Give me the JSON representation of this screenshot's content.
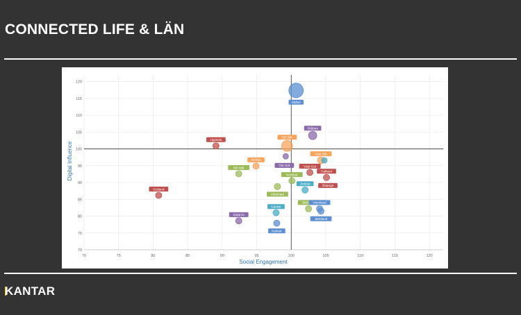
{
  "slide": {
    "title": "CONNECTED LIFE & LÄN",
    "brand": "KANTAR",
    "colors": {
      "background": "#333333",
      "rule": "#ffffff",
      "brand_accent": "#f5c400"
    }
  },
  "chart_data": {
    "type": "scatter",
    "subtype": "bubble",
    "xlabel": "Social Engagement",
    "ylabel": "Digital Influence",
    "xlim": [
      70,
      122
    ],
    "ylim": [
      70,
      122
    ],
    "xticks": [
      70,
      75,
      80,
      85,
      90,
      95,
      100,
      105,
      110,
      115,
      120
    ],
    "yticks": [
      70,
      75,
      80,
      85,
      90,
      95,
      100,
      105,
      110,
      115,
      120
    ],
    "reference_lines": {
      "x": 100,
      "y": 100
    },
    "grid": true,
    "legend": "none",
    "colors": {
      "blue": "#5b8fd1",
      "purple": "#8a6aaa",
      "red": "#c0504d",
      "orange": "#f7a35c",
      "green": "#9bbb59",
      "cyan": "#4bacc6"
    },
    "points": [
      {
        "label": "Skåne",
        "x": 100.7,
        "y": 117.4,
        "size": 10.5,
        "color": "blue",
        "label_pos": "below"
      },
      {
        "label": "Skånes",
        "x": 103.1,
        "y": 104.0,
        "size": 6,
        "color": "purple",
        "label_pos": "above"
      },
      {
        "label": "Sth Sth",
        "x": 99.4,
        "y": 100.9,
        "size": 8,
        "color": "orange",
        "label_pos": "above"
      },
      {
        "label": "Uppsala",
        "x": 89.1,
        "y": 100.9,
        "size": 4.5,
        "color": "red",
        "label_pos": "above"
      },
      {
        "label": "Väst Sth",
        "x": 104.3,
        "y": 96.6,
        "size": 5,
        "color": "orange",
        "label_pos": "above"
      },
      {
        "label": "",
        "x": 104.8,
        "y": 96.6,
        "size": 4,
        "color": "cyan",
        "label_pos": "none"
      },
      {
        "label": "",
        "x": 99.2,
        "y": 97.8,
        "size": 4,
        "color": "purple",
        "label_pos": "none"
      },
      {
        "label": "Örebro",
        "x": 94.9,
        "y": 94.9,
        "size": 4.5,
        "color": "orange",
        "label_pos": "above"
      },
      {
        "label": "Öst Göt",
        "x": 99.0,
        "y": 95.0,
        "size": 4,
        "color": "purple",
        "label_pos": "label-only"
      },
      {
        "label": "Väst Got",
        "x": 102.7,
        "y": 93.0,
        "size": 4.5,
        "color": "red",
        "label_pos": "above"
      },
      {
        "label": "Sth Mitt",
        "x": 92.4,
        "y": 92.6,
        "size": 4.5,
        "color": "green",
        "label_pos": "above"
      },
      {
        "label": "Halland",
        "x": 105.1,
        "y": 91.5,
        "size": 4.5,
        "color": "red",
        "label_pos": "above"
      },
      {
        "label": "Norrbott",
        "x": 100.1,
        "y": 90.5,
        "size": 4.5,
        "color": "green",
        "label_pos": "above"
      },
      {
        "label": "Gotland",
        "x": 80.8,
        "y": 86.2,
        "size": 4.5,
        "color": "red",
        "label_pos": "above"
      },
      {
        "label": "Västmanl",
        "x": 98.0,
        "y": 88.8,
        "size": 4.5,
        "color": "green",
        "label_pos": "below"
      },
      {
        "label": "Jönköp",
        "x": 102.0,
        "y": 87.8,
        "size": 4.5,
        "color": "cyan",
        "label_pos": "above"
      },
      {
        "label": "Östergö",
        "x": 105.3,
        "y": 89.0,
        "size": 0,
        "color": "red",
        "label_pos": "label-only"
      },
      {
        "label": "Blekinge",
        "x": 102.5,
        "y": 82.2,
        "size": 4.5,
        "color": "green",
        "label_pos": "above"
      },
      {
        "label": "Värmland",
        "x": 104.1,
        "y": 82.2,
        "size": 4.5,
        "color": "blue",
        "label_pos": "above"
      },
      {
        "label": "Jämtland",
        "x": 104.3,
        "y": 81.5,
        "size": 4.5,
        "color": "blue",
        "label_pos": "below"
      },
      {
        "label": "Gävleb",
        "x": 97.8,
        "y": 81.0,
        "size": 4.5,
        "color": "cyan",
        "label_pos": "above"
      },
      {
        "label": "Dalarna",
        "x": 92.4,
        "y": 78.6,
        "size": 4.5,
        "color": "purple",
        "label_pos": "above"
      },
      {
        "label": "Kalmar",
        "x": 97.9,
        "y": 77.9,
        "size": 4.5,
        "color": "blue",
        "label_pos": "below"
      }
    ]
  }
}
